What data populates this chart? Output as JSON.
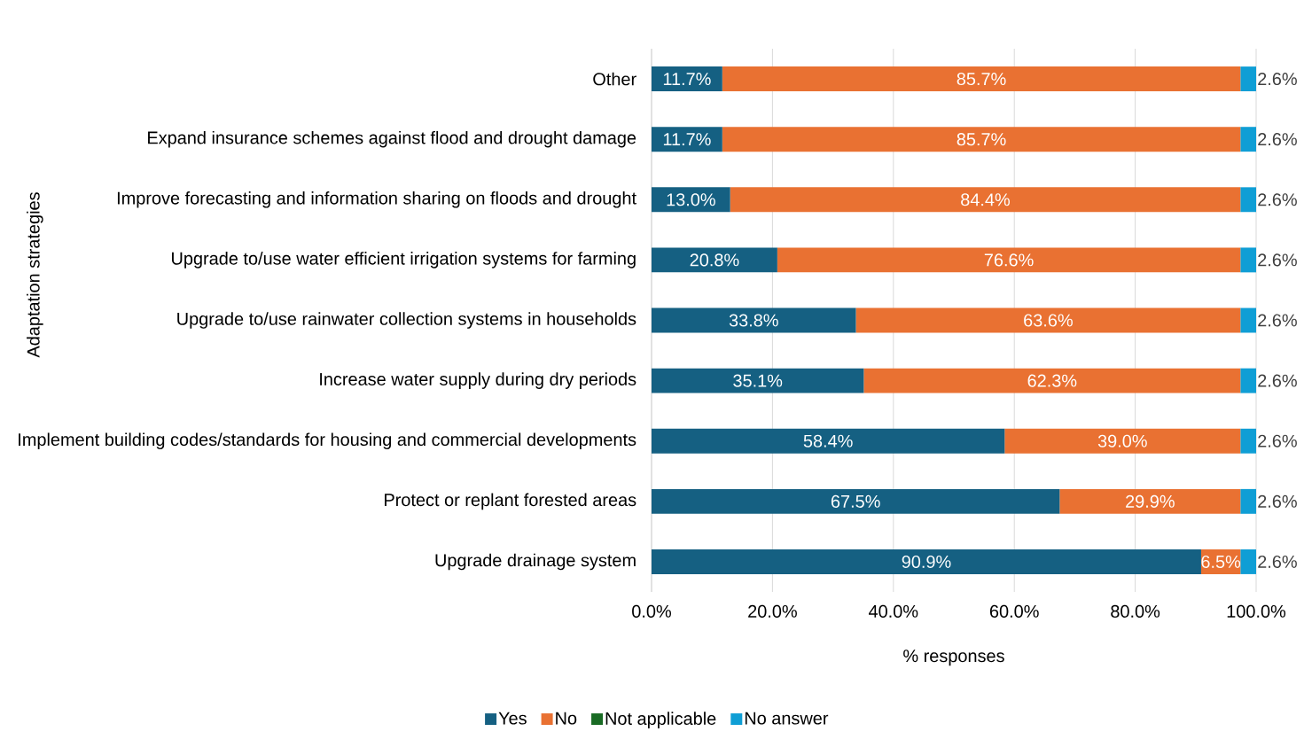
{
  "chart_data": {
    "type": "bar",
    "orientation": "horizontal",
    "stacked": true,
    "xlabel": "% responses",
    "ylabel": "Adaptation strategies",
    "categories": [
      "Other",
      "Expand insurance schemes against flood and drought damage",
      "Improve forecasting and information sharing on floods and drought",
      "Upgrade to/use water efficient irrigation systems for farming",
      "Upgrade to/use rainwater collection systems in households",
      "Increase water supply during dry periods",
      "Implement building codes/standards for housing and commercial developments",
      "Protect or replant forested areas",
      "Upgrade drainage system"
    ],
    "series": [
      {
        "name": "Yes",
        "color": "#156082",
        "values": [
          11.7,
          11.7,
          13.0,
          20.8,
          33.8,
          35.1,
          58.4,
          67.5,
          90.9
        ],
        "value_labels": [
          "11.7%",
          "11.7%",
          "13.0%",
          "20.8%",
          "33.8%",
          "35.1%",
          "58.4%",
          "67.5%",
          "90.9%"
        ]
      },
      {
        "name": "No",
        "color": "#e97132",
        "values": [
          85.7,
          85.7,
          84.4,
          76.6,
          63.6,
          62.3,
          39.0,
          29.9,
          6.5
        ],
        "value_labels": [
          "85.7%",
          "85.7%",
          "84.4%",
          "76.6%",
          "63.6%",
          "62.3%",
          "39.0%",
          "29.9%",
          "6.5%"
        ]
      },
      {
        "name": "Not applicable",
        "color": "#196b24",
        "values": [
          0,
          0,
          0,
          0,
          0,
          0,
          0,
          0,
          0
        ]
      },
      {
        "name": "No answer",
        "color": "#0f9ed5",
        "values": [
          2.6,
          2.6,
          2.6,
          2.6,
          2.6,
          2.6,
          2.6,
          2.6,
          2.6
        ],
        "value_labels": [
          "2.6%",
          "2.6%",
          "2.6%",
          "2.6%",
          "2.6%",
          "2.6%",
          "2.6%",
          "2.6%",
          "2.6%"
        ]
      }
    ],
    "xlim": [
      0,
      100
    ],
    "xticks": [
      {
        "value": 0,
        "label": "0.0%"
      },
      {
        "value": 20,
        "label": "20.0%"
      },
      {
        "value": 40,
        "label": "40.0%"
      },
      {
        "value": 60,
        "label": "60.0%"
      },
      {
        "value": 80,
        "label": "80.0%"
      },
      {
        "value": 100,
        "label": "100.0%"
      }
    ],
    "grid": "x",
    "legend": "bottom"
  }
}
